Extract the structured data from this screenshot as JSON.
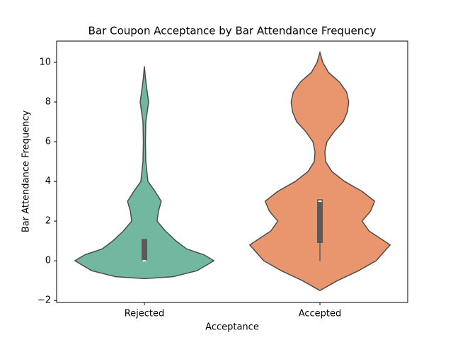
{
  "chart_data": {
    "type": "violin",
    "title": "Bar Coupon Acceptance by Bar Attendance Frequency",
    "x_label": "Acceptance",
    "y_label": "Bar Attendance Frequency",
    "categories": [
      "Rejected",
      "Accepted"
    ],
    "ylim": [
      -2.1,
      11.07
    ],
    "yticks": [
      {
        "value": -2,
        "label": "−2"
      },
      0,
      2,
      4,
      6,
      8,
      10
    ],
    "edge_color": "#4c4c4c",
    "violins": [
      {
        "color": "#72b8a1",
        "y": [
          -0.9,
          -0.8,
          -0.5,
          0,
          0.3,
          0.6,
          1.0,
          1.5,
          2.0,
          2.5,
          3.0,
          3.5,
          4.0,
          5.0,
          6.0,
          7.0,
          7.5,
          8.0,
          8.5,
          9.2,
          9.8
        ],
        "density": [
          0,
          0.41,
          0.75,
          0.99,
          0.85,
          0.6,
          0.45,
          0.3,
          0.18,
          0.2,
          0.24,
          0.15,
          0.05,
          0.02,
          0.015,
          0.02,
          0.04,
          0.06,
          0.04,
          0.015,
          0
        ],
        "q1": 0,
        "median": 0,
        "q3": 1.1,
        "whisker_low": 0,
        "whisker_high": 1.1
      },
      {
        "color": "#e9966f",
        "y": [
          -1.5,
          -1.0,
          -0.5,
          0,
          0.8,
          1.5,
          2.0,
          2.5,
          3.0,
          3.5,
          4.0,
          4.5,
          5.0,
          5.5,
          6.0,
          6.5,
          7.0,
          7.5,
          8.0,
          8.5,
          9.0,
          9.5,
          10.0,
          10.5
        ],
        "density": [
          0,
          0.25,
          0.55,
          0.8,
          1.0,
          0.7,
          0.6,
          0.72,
          0.78,
          0.6,
          0.35,
          0.17,
          0.08,
          0.07,
          0.1,
          0.2,
          0.33,
          0.39,
          0.41,
          0.38,
          0.28,
          0.12,
          0.04,
          0
        ],
        "q1": 0.9,
        "median": 3,
        "q3": 3.1,
        "whisker_low": 0,
        "whisker_high": 3.1
      }
    ]
  }
}
